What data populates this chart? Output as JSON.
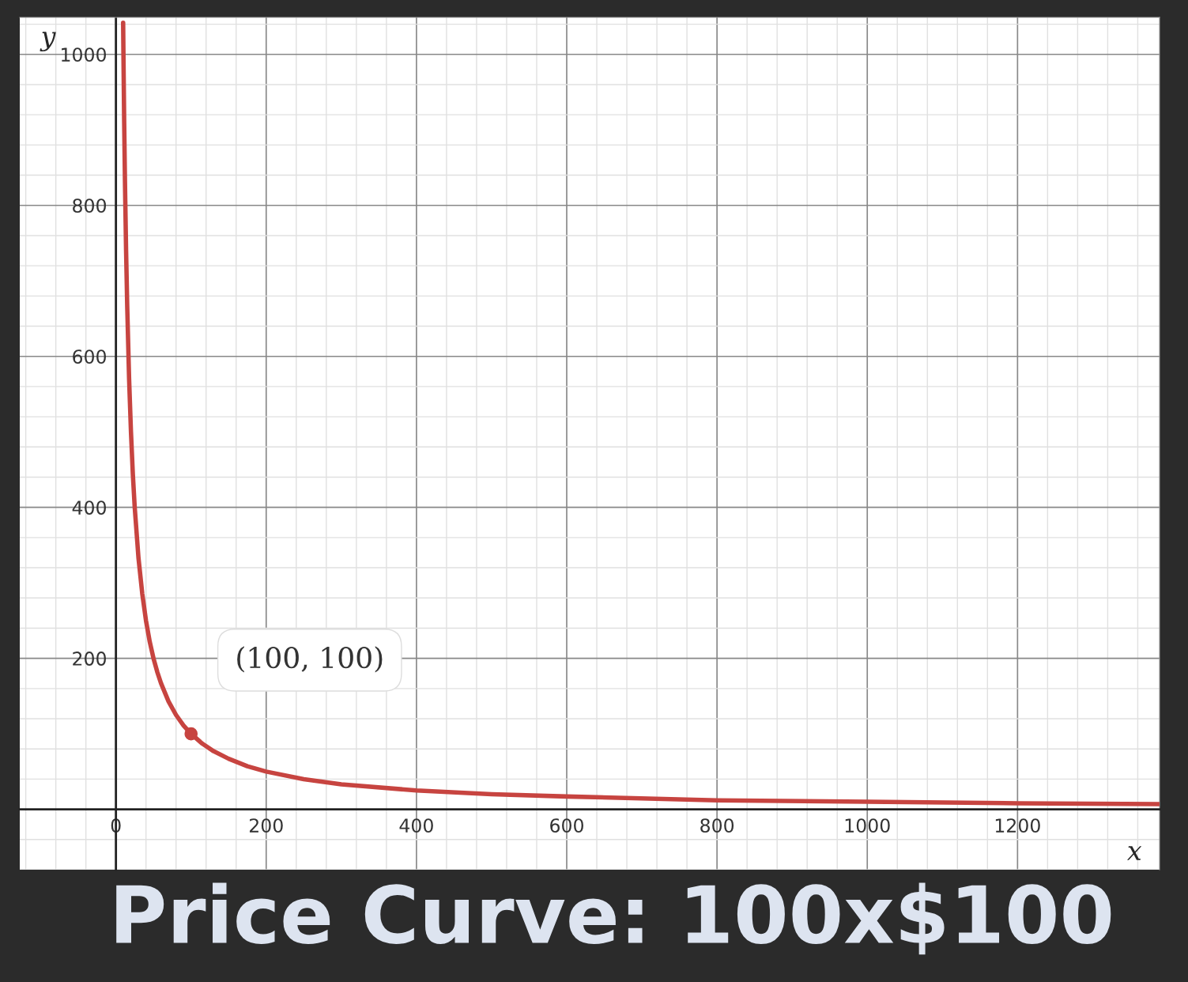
{
  "chart_data": {
    "type": "line",
    "title": "Price Curve: 100x$100",
    "xlabel": "x",
    "ylabel": "y",
    "series": [
      {
        "color": "#c74440",
        "x": [
          9.6,
          10,
          11,
          12,
          13.5,
          15,
          17.5,
          20,
          22.5,
          25,
          30,
          35,
          40,
          45,
          50,
          55,
          60,
          70,
          80,
          90,
          100,
          115,
          130,
          150,
          175,
          200,
          250,
          300,
          400,
          500,
          600,
          800,
          1000,
          1200,
          1389
        ],
        "values": [
          1042,
          1000,
          909,
          833,
          741,
          667,
          571,
          500,
          444,
          400,
          333,
          286,
          250,
          222,
          200,
          182,
          167,
          143,
          125,
          111,
          100,
          87,
          77,
          67,
          57,
          50,
          40,
          33,
          25,
          20,
          17,
          12,
          10,
          8,
          7
        ]
      },
      {
        "type": "scatter",
        "marker": "circle",
        "color": "#c74440",
        "x": [
          100
        ],
        "values": [
          100
        ]
      }
    ],
    "annotations": [
      {
        "text": "(100, 100)",
        "x": 100,
        "y": 100
      }
    ],
    "xlim": [
      -128,
      1389
    ],
    "ylim": [
      -80,
      1049
    ],
    "xticks": [
      0,
      200,
      400,
      600,
      800,
      1000,
      1200
    ],
    "yticks": [
      200,
      400,
      600,
      800,
      1000
    ],
    "grid": true,
    "line_style": "solid",
    "marker": "none"
  }
}
